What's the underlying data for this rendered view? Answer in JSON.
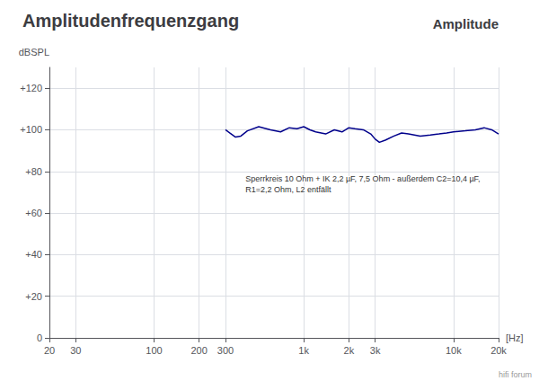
{
  "chart_data": {
    "type": "line",
    "title": "Amplitudenfrequenzgang",
    "subtitle": "Amplitude",
    "xlabel": "[Hz]",
    "ylabel": "dBSPL",
    "annotations": [
      {
        "text": "Sperrkreis 10 Ohm + IK 2,2 µF, 7,5 Ohm - außerdem C2=10,4 µF, R1=2,2 Ohm, L2 entfällt",
        "x": 380,
        "y": 74
      }
    ],
    "watermark": "hifi forum",
    "x": [
      300,
      320,
      350,
      380,
      420,
      500,
      600,
      700,
      800,
      900,
      1000,
      1100,
      1200,
      1400,
      1600,
      1800,
      2000,
      2200,
      2500,
      2800,
      3000,
      3200,
      3500,
      4000,
      4500,
      5000,
      6000,
      7000,
      8000,
      9000,
      10000,
      12000,
      14000,
      16000,
      18000,
      20000
    ],
    "values": [
      100,
      98.5,
      96.5,
      97,
      99.5,
      101.5,
      100,
      99,
      101,
      100.5,
      101.5,
      100,
      99,
      98,
      100,
      99,
      101,
      100.5,
      100,
      98,
      95.5,
      94,
      95,
      97,
      98.5,
      98,
      97,
      97.5,
      98,
      98.5,
      99,
      99.5,
      100,
      101,
      100,
      98
    ],
    "color": "#00008b",
    "log": "x",
    "grid": true,
    "xlim": [
      20,
      20000
    ],
    "xticks": [
      20,
      30,
      100,
      200,
      300,
      {
        "value": 1000,
        "label": "1k"
      },
      {
        "value": 2000,
        "label": "2k"
      },
      {
        "value": 3000,
        "label": "3k"
      },
      {
        "value": 10000,
        "label": "10k"
      },
      {
        "value": 20000,
        "label": "20k"
      }
    ],
    "ylim": [
      0,
      130
    ],
    "yticks": [
      0,
      {
        "value": 20,
        "label": "+20"
      },
      {
        "value": 40,
        "label": "+40"
      },
      {
        "value": 60,
        "label": "+60"
      },
      {
        "value": 80,
        "label": "+80"
      },
      {
        "value": 100,
        "label": "+100"
      },
      {
        "value": 120,
        "label": "+120"
      }
    ]
  }
}
